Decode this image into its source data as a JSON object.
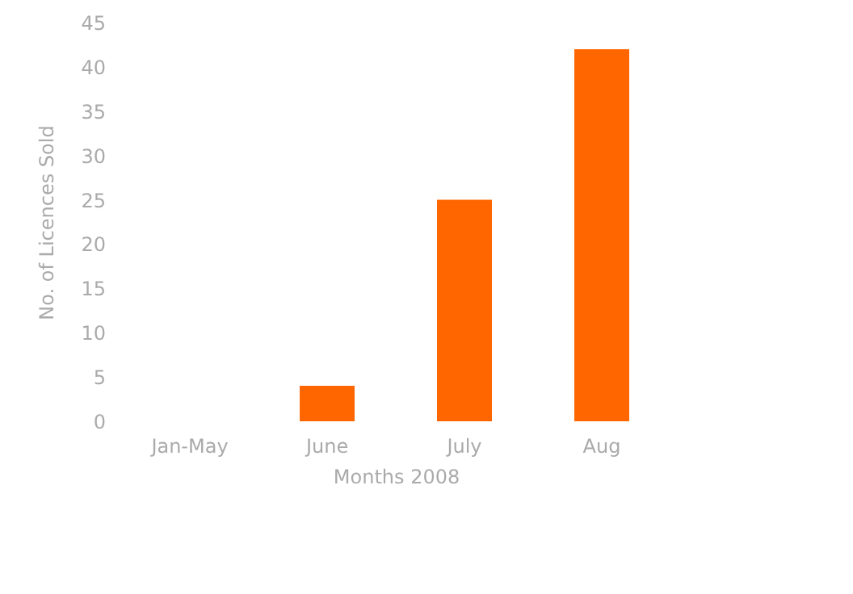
{
  "chart_data": {
    "type": "bar",
    "xlabel": "Months 2008",
    "ylabel": "No. of Licences Sold",
    "categories": [
      "Jan-May",
      "June",
      "July",
      "Aug"
    ],
    "values": [
      0,
      4,
      25,
      42
    ],
    "color": "#ff6600",
    "ylim": [
      0,
      45
    ],
    "yticks": [
      0,
      5,
      10,
      15,
      20,
      25,
      30,
      35,
      40,
      45
    ],
    "grid": false
  }
}
